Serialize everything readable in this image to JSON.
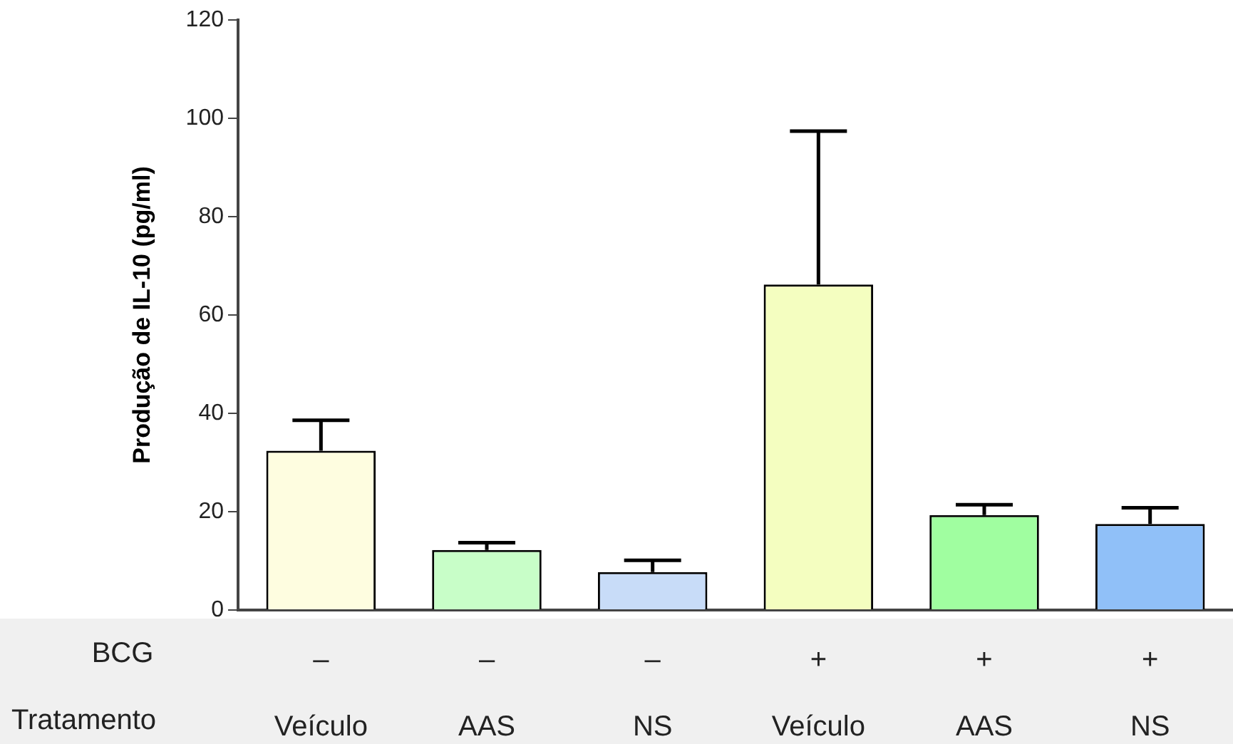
{
  "chart_data": {
    "type": "bar",
    "ylabel": "Produção de IL-10 (pg/ml)",
    "categories": [
      "–\nVeículo",
      "–\nAAS",
      "–\nNS",
      "+\nVeículo",
      "+\nAAS",
      "+\nNS"
    ],
    "values": [
      32.4,
      12.2,
      7.7,
      66.2,
      19.3,
      17.5
    ],
    "errors": [
      6.2,
      1.5,
      2.4,
      31.2,
      2.1,
      3.3
    ],
    "colors": [
      "#fefde0",
      "#c8fec8",
      "#c8dcf8",
      "#f4fec0",
      "#a0fea0",
      "#90c0f8"
    ],
    "ylim": [
      0,
      120
    ],
    "yticks": [
      0,
      20,
      40,
      60,
      80,
      100,
      120
    ],
    "annotations": [
      "BCG",
      "Tratamento"
    ],
    "grid": false,
    "legend": false
  }
}
